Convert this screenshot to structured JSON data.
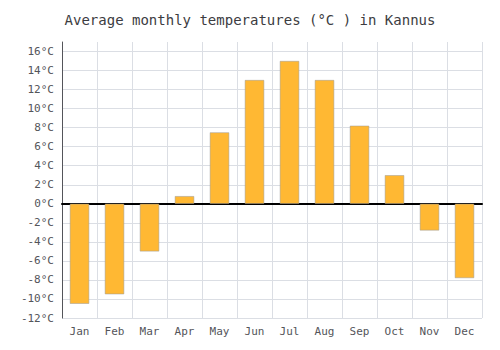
{
  "chart_data": {
    "type": "bar",
    "title": "Average monthly temperatures (°C ) in Kannus",
    "categories": [
      "Jan",
      "Feb",
      "Mar",
      "Apr",
      "May",
      "Jun",
      "Jul",
      "Aug",
      "Sep",
      "Oct",
      "Nov",
      "Dec"
    ],
    "values": [
      -10.5,
      -9.5,
      -5.0,
      0.8,
      7.5,
      13.0,
      15.0,
      13.0,
      8.2,
      3.0,
      -2.8,
      -7.8
    ],
    "color": "#FFB833",
    "ylim": [
      -12,
      17
    ],
    "yticks": [
      {
        "value": -12,
        "label": "-12°C"
      },
      {
        "value": -10,
        "label": "-10°C"
      },
      {
        "value": -8,
        "label": "-8°C"
      },
      {
        "value": -6,
        "label": "-6°C"
      },
      {
        "value": -4,
        "label": "-4°C"
      },
      {
        "value": -2,
        "label": "-2°C"
      },
      {
        "value": 0,
        "label": "0°C"
      },
      {
        "value": 2,
        "label": "2°C"
      },
      {
        "value": 4,
        "label": "4°C"
      },
      {
        "value": 6,
        "label": "6°C"
      },
      {
        "value": 8,
        "label": "8°C"
      },
      {
        "value": 10,
        "label": "10°C"
      },
      {
        "value": 12,
        "label": "12°C"
      },
      {
        "value": 14,
        "label": "14°C"
      },
      {
        "value": 16,
        "label": "16°C"
      }
    ],
    "grid": true
  }
}
